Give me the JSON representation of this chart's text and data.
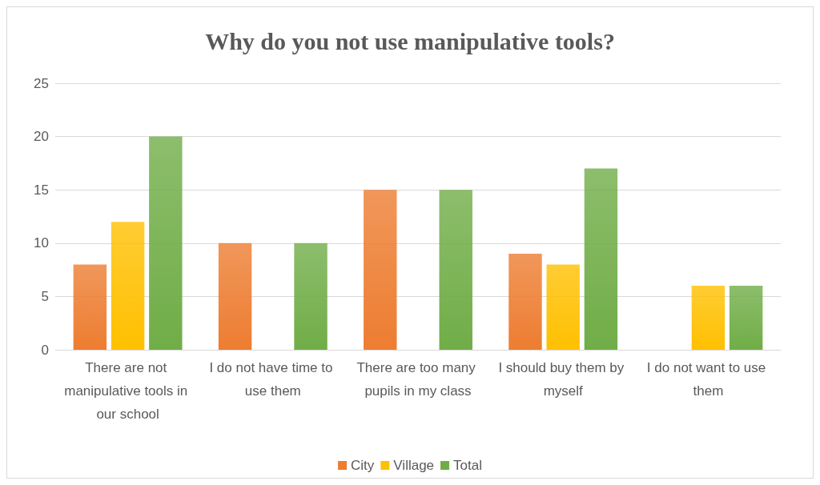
{
  "chart_data": {
    "type": "bar",
    "title": "Why do you not use manipulative tools?",
    "categories": [
      "There are not manipulative tools in our school",
      "I do not have time to use them",
      "There are too many pupils in my class",
      "I should buy them by myself",
      "I do not want to use them"
    ],
    "series": [
      {
        "name": "City",
        "color": "#ed7d31",
        "values": [
          8,
          10,
          15,
          9,
          null
        ]
      },
      {
        "name": "Village",
        "color": "#ffc000",
        "values": [
          12,
          null,
          null,
          8,
          6
        ]
      },
      {
        "name": "Total",
        "color": "#70ad47",
        "values": [
          20,
          10,
          15,
          17,
          6
        ]
      }
    ],
    "ylim": [
      0,
      25
    ],
    "yticks": [
      0,
      5,
      10,
      15,
      20,
      25
    ],
    "grid": "y",
    "legend": "bottom"
  }
}
